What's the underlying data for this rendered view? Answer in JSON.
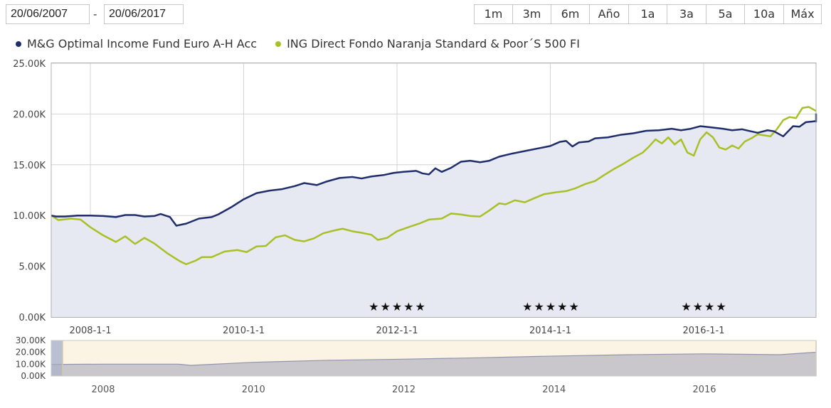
{
  "date_range": {
    "from": "20/06/2007",
    "separator": "-",
    "to": "20/06/2017"
  },
  "range_buttons": [
    "1m",
    "3m",
    "6m",
    "Año",
    "1a",
    "3a",
    "5a",
    "10a",
    "Máx"
  ],
  "colors": {
    "series_1": "#1f2d6b",
    "series_2": "#a8c026",
    "fill": "#e6e9f1",
    "navigator_band": "#fbf3e3"
  },
  "stars": [
    "★★★★★",
    "★★★★★",
    "★★★★"
  ],
  "chart_data": [
    {
      "type": "line",
      "ylim": [
        0,
        25000
      ],
      "y_ticks": [
        "0.00K",
        "5.00K",
        "10.00K",
        "15.00K",
        "20.00K",
        "25.00K"
      ],
      "x_ticks": [
        "2008-1-1",
        "2010-1-1",
        "2012-1-1",
        "2014-1-1",
        "2016-1-1"
      ],
      "legend_position": "top-left",
      "grid": true,
      "series": [
        {
          "name": "M&G Optimal Income Fund Euro A-H Acc",
          "color": "#1f2d6b",
          "points": [
            [
              "2007-06-20",
              10000
            ],
            [
              "2007-07-20",
              9900
            ],
            [
              "2007-09-01",
              9900
            ],
            [
              "2007-11-01",
              10000
            ],
            [
              "2008-01-01",
              10000
            ],
            [
              "2008-03-01",
              9950
            ],
            [
              "2008-05-01",
              9850
            ],
            [
              "2008-06-15",
              10050
            ],
            [
              "2008-08-01",
              10050
            ],
            [
              "2008-09-15",
              9900
            ],
            [
              "2008-11-01",
              9950
            ],
            [
              "2008-12-01",
              10150
            ],
            [
              "2009-01-15",
              9850
            ],
            [
              "2009-02-15",
              9000
            ],
            [
              "2009-04-01",
              9200
            ],
            [
              "2009-06-01",
              9700
            ],
            [
              "2009-08-01",
              9850
            ],
            [
              "2009-09-01",
              10100
            ],
            [
              "2009-11-01",
              10800
            ],
            [
              "2010-01-01",
              11600
            ],
            [
              "2010-03-01",
              12200
            ],
            [
              "2010-05-01",
              12450
            ],
            [
              "2010-07-01",
              12600
            ],
            [
              "2010-09-01",
              12900
            ],
            [
              "2010-10-15",
              13200
            ],
            [
              "2010-12-15",
              13000
            ],
            [
              "2011-02-01",
              13350
            ],
            [
              "2011-04-01",
              13700
            ],
            [
              "2011-06-01",
              13800
            ],
            [
              "2011-07-15",
              13650
            ],
            [
              "2011-09-01",
              13850
            ],
            [
              "2011-11-01",
              14000
            ],
            [
              "2011-12-15",
              14200
            ],
            [
              "2012-02-01",
              14300
            ],
            [
              "2012-04-01",
              14400
            ],
            [
              "2012-05-01",
              14150
            ],
            [
              "2012-06-01",
              14050
            ],
            [
              "2012-07-01",
              14650
            ],
            [
              "2012-08-01",
              14300
            ],
            [
              "2012-09-15",
              14700
            ],
            [
              "2012-11-01",
              15300
            ],
            [
              "2012-12-15",
              15400
            ],
            [
              "2013-02-01",
              15250
            ],
            [
              "2013-03-15",
              15400
            ],
            [
              "2013-05-01",
              15800
            ],
            [
              "2013-07-01",
              16100
            ],
            [
              "2013-09-01",
              16350
            ],
            [
              "2013-11-01",
              16600
            ],
            [
              "2014-01-01",
              16850
            ],
            [
              "2014-02-15",
              17250
            ],
            [
              "2014-03-15",
              17350
            ],
            [
              "2014-04-15",
              16800
            ],
            [
              "2014-05-15",
              17200
            ],
            [
              "2014-07-01",
              17300
            ],
            [
              "2014-08-01",
              17600
            ],
            [
              "2014-10-01",
              17700
            ],
            [
              "2014-12-01",
              17950
            ],
            [
              "2015-02-01",
              18100
            ],
            [
              "2015-04-01",
              18350
            ],
            [
              "2015-06-01",
              18400
            ],
            [
              "2015-08-01",
              18550
            ],
            [
              "2015-09-15",
              18400
            ],
            [
              "2015-11-01",
              18550
            ],
            [
              "2015-12-15",
              18800
            ],
            [
              "2016-02-01",
              18700
            ],
            [
              "2016-04-01",
              18550
            ],
            [
              "2016-05-15",
              18400
            ],
            [
              "2016-07-01",
              18500
            ],
            [
              "2016-08-01",
              18350
            ],
            [
              "2016-09-15",
              18150
            ],
            [
              "2016-11-01",
              18400
            ],
            [
              "2016-12-01",
              18300
            ],
            [
              "2017-01-15",
              17800
            ],
            [
              "2017-03-01",
              18800
            ],
            [
              "2017-04-01",
              18750
            ],
            [
              "2017-05-01",
              19200
            ],
            [
              "2017-06-20",
              19300
            ],
            [
              "2017-08-01",
              19250
            ],
            [
              "2017-09-01",
              19500
            ],
            [
              "2017-10-15",
              19600
            ],
            [
              "2017-12-01",
              19700
            ],
            [
              "2018-01-01",
              19850
            ],
            [
              "2018-01-25",
              20050
            ]
          ]
        },
        {
          "name": "ING Direct Fondo Naranja Standard & Poor´S 500 FI",
          "color": "#a8c026",
          "points": [
            [
              "2007-06-20",
              10000
            ],
            [
              "2007-08-01",
              9550
            ],
            [
              "2007-10-01",
              9700
            ],
            [
              "2007-11-15",
              9600
            ],
            [
              "2008-01-01",
              8850
            ],
            [
              "2008-03-01",
              8050
            ],
            [
              "2008-05-01",
              7400
            ],
            [
              "2008-06-15",
              7950
            ],
            [
              "2008-08-01",
              7200
            ],
            [
              "2008-09-15",
              7800
            ],
            [
              "2008-11-01",
              7250
            ],
            [
              "2009-01-01",
              6300
            ],
            [
              "2009-03-01",
              5500
            ],
            [
              "2009-04-01",
              5200
            ],
            [
              "2009-05-15",
              5550
            ],
            [
              "2009-06-15",
              5900
            ],
            [
              "2009-08-01",
              5900
            ],
            [
              "2009-10-01",
              6450
            ],
            [
              "2009-12-01",
              6600
            ],
            [
              "2010-01-15",
              6400
            ],
            [
              "2010-03-01",
              6950
            ],
            [
              "2010-04-15",
              7000
            ],
            [
              "2010-06-01",
              7850
            ],
            [
              "2010-07-15",
              8050
            ],
            [
              "2010-09-01",
              7600
            ],
            [
              "2010-10-15",
              7450
            ],
            [
              "2010-12-01",
              7750
            ],
            [
              "2011-01-15",
              8250
            ],
            [
              "2011-03-01",
              8500
            ],
            [
              "2011-04-15",
              8700
            ],
            [
              "2011-06-01",
              8450
            ],
            [
              "2011-07-15",
              8300
            ],
            [
              "2011-09-01",
              8100
            ],
            [
              "2011-10-01",
              7600
            ],
            [
              "2011-11-15",
              7800
            ],
            [
              "2012-01-01",
              8450
            ],
            [
              "2012-03-01",
              8900
            ],
            [
              "2012-04-15",
              9200
            ],
            [
              "2012-06-01",
              9600
            ],
            [
              "2012-08-01",
              9700
            ],
            [
              "2012-09-15",
              10200
            ],
            [
              "2012-11-01",
              10100
            ],
            [
              "2012-12-15",
              9950
            ],
            [
              "2013-02-01",
              9900
            ],
            [
              "2013-03-15",
              10500
            ],
            [
              "2013-05-01",
              11200
            ],
            [
              "2013-06-01",
              11100
            ],
            [
              "2013-07-15",
              11500
            ],
            [
              "2013-09-01",
              11300
            ],
            [
              "2013-10-15",
              11700
            ],
            [
              "2013-12-01",
              12100
            ],
            [
              "2014-02-01",
              12300
            ],
            [
              "2014-03-15",
              12400
            ],
            [
              "2014-05-01",
              12700
            ],
            [
              "2014-06-15",
              13100
            ],
            [
              "2014-08-01",
              13400
            ],
            [
              "2014-09-15",
              14000
            ],
            [
              "2014-11-01",
              14600
            ],
            [
              "2014-12-15",
              15100
            ],
            [
              "2015-02-01",
              15700
            ],
            [
              "2015-03-15",
              16200
            ],
            [
              "2015-04-15",
              16800
            ],
            [
              "2015-05-15",
              17500
            ],
            [
              "2015-06-15",
              17100
            ],
            [
              "2015-07-15",
              17700
            ],
            [
              "2015-08-15",
              17000
            ],
            [
              "2015-09-15",
              17500
            ],
            [
              "2015-10-15",
              16200
            ],
            [
              "2015-11-15",
              15900
            ],
            [
              "2015-12-15",
              17500
            ],
            [
              "2016-01-15",
              18200
            ],
            [
              "2016-02-15",
              17700
            ],
            [
              "2016-03-15",
              16700
            ],
            [
              "2016-04-15",
              16500
            ],
            [
              "2016-05-15",
              16900
            ],
            [
              "2016-06-15",
              16600
            ],
            [
              "2016-07-15",
              17300
            ],
            [
              "2016-08-15",
              17600
            ],
            [
              "2016-09-15",
              18000
            ],
            [
              "2016-10-15",
              17900
            ],
            [
              "2016-11-15",
              17800
            ],
            [
              "2016-12-15",
              18500
            ],
            [
              "2017-01-15",
              19400
            ],
            [
              "2017-02-15",
              19700
            ],
            [
              "2017-03-15",
              19600
            ],
            [
              "2017-04-15",
              20600
            ],
            [
              "2017-05-15",
              20700
            ],
            [
              "2017-06-20",
              20300
            ]
          ]
        }
      ]
    },
    {
      "type": "area",
      "ylim": [
        0,
        30000
      ],
      "y_ticks": [
        "0.00K",
        "10.00K",
        "20.00K",
        "30.00K"
      ],
      "x_ticks": [
        "2008",
        "2010",
        "2012",
        "2014",
        "2016"
      ],
      "series": [
        {
          "color": "#1f2d6b",
          "points": [
            [
              "2007-01-01",
              9800
            ],
            [
              "2008-01-01",
              10000
            ],
            [
              "2009-01-01",
              10000
            ],
            [
              "2009-03-01",
              9000
            ],
            [
              "2010-01-01",
              11600
            ],
            [
              "2011-01-01",
              13300
            ],
            [
              "2012-01-01",
              14200
            ],
            [
              "2013-01-01",
              15400
            ],
            [
              "2014-01-01",
              16850
            ],
            [
              "2015-01-01",
              18000
            ],
            [
              "2016-01-01",
              18700
            ],
            [
              "2017-01-01",
              18000
            ],
            [
              "2018-01-25",
              20050
            ]
          ]
        }
      ]
    }
  ]
}
